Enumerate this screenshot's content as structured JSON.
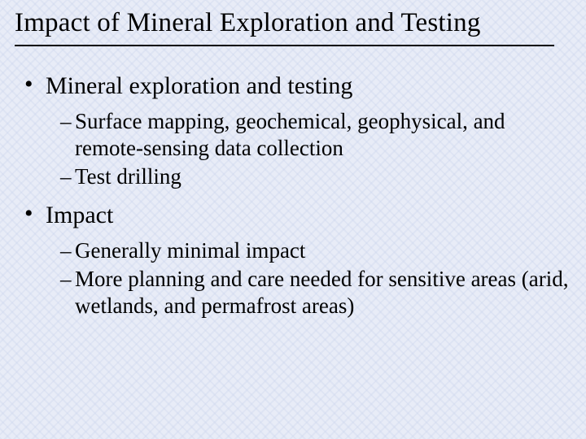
{
  "slide": {
    "title": "Impact of Mineral Exploration and Testing",
    "background_color": "#e8ecf7",
    "text_color": "#000000",
    "rule_color": "#000000",
    "font_family": "Times New Roman",
    "title_fontsize": 33,
    "level1_fontsize": 30,
    "level2_fontsize": 27,
    "bullets": [
      {
        "text": "Mineral exploration and testing",
        "sub": [
          "Surface mapping, geochemical, geophysical, and remote-sensing data collection",
          "Test drilling"
        ]
      },
      {
        "text": "Impact",
        "sub": [
          "Generally minimal impact",
          "More planning and care needed for sensitive areas (arid, wetlands, and permafrost areas)"
        ]
      }
    ]
  }
}
